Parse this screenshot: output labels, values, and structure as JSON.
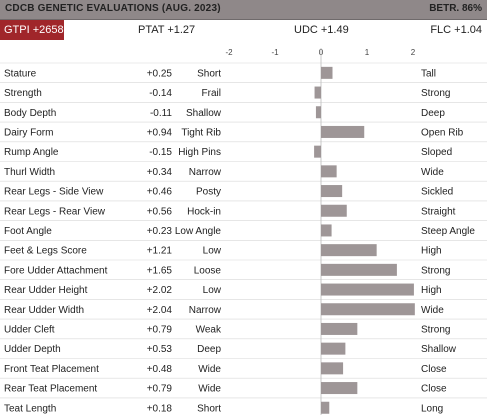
{
  "header": {
    "title": "CDCB GENETIC EVALUATIONS (AUG. 2023)",
    "reliability": "BETR. 86%"
  },
  "summary": {
    "gtpi": "GTPI +2658",
    "ptat": "PTAT +1.27",
    "udc": "UDC +1.49",
    "flc": "FLC +1.04"
  },
  "colors": {
    "bar": "#9e9697",
    "badge": "#a0262a",
    "header": "#8f8889",
    "grid": "#d8d8d8"
  },
  "chart_data": {
    "type": "bar",
    "orientation": "horizontal",
    "xlim": [
      -2,
      2
    ],
    "ticks": [
      "-2",
      "-1",
      "0",
      "1",
      "2"
    ],
    "tick_values": [
      -2,
      -1,
      0,
      1,
      2
    ],
    "traits": [
      {
        "name": "Stature",
        "value_label": "+0.25",
        "value": 0.25,
        "low": "Short",
        "high": "Tall"
      },
      {
        "name": "Strength",
        "value_label": "-0.14",
        "value": -0.14,
        "low": "Frail",
        "high": "Strong"
      },
      {
        "name": "Body Depth",
        "value_label": "-0.11",
        "value": -0.11,
        "low": "Shallow",
        "high": "Deep"
      },
      {
        "name": "Dairy Form",
        "value_label": "+0.94",
        "value": 0.94,
        "low": "Tight Rib",
        "high": "Open Rib"
      },
      {
        "name": "Rump Angle",
        "value_label": "-0.15",
        "value": -0.15,
        "low": "High Pins",
        "high": "Sloped"
      },
      {
        "name": "Thurl Width",
        "value_label": "+0.34",
        "value": 0.34,
        "low": "Narrow",
        "high": "Wide"
      },
      {
        "name": "Rear Legs - Side View",
        "value_label": "+0.46",
        "value": 0.46,
        "low": "Posty",
        "high": "Sickled"
      },
      {
        "name": "Rear Legs - Rear View",
        "value_label": "+0.56",
        "value": 0.56,
        "low": "Hock-in",
        "high": "Straight"
      },
      {
        "name": "Foot Angle",
        "value_label": "+0.23",
        "value": 0.23,
        "low": "Low Angle",
        "high": "Steep Angle"
      },
      {
        "name": "Feet & Legs Score",
        "value_label": "+1.21",
        "value": 1.21,
        "low": "Low",
        "high": "High"
      },
      {
        "name": "Fore Udder Attachment",
        "value_label": "+1.65",
        "value": 1.65,
        "low": "Loose",
        "high": "Strong"
      },
      {
        "name": "Rear Udder Height",
        "value_label": "+2.02",
        "value": 2.02,
        "low": "Low",
        "high": "High"
      },
      {
        "name": "Rear Udder Width",
        "value_label": "+2.04",
        "value": 2.04,
        "low": "Narrow",
        "high": "Wide"
      },
      {
        "name": "Udder Cleft",
        "value_label": "+0.79",
        "value": 0.79,
        "low": "Weak",
        "high": "Strong"
      },
      {
        "name": "Udder Depth",
        "value_label": "+0.53",
        "value": 0.53,
        "low": "Deep",
        "high": "Shallow"
      },
      {
        "name": "Front Teat Placement",
        "value_label": "+0.48",
        "value": 0.48,
        "low": "Wide",
        "high": "Close"
      },
      {
        "name": "Rear Teat Placement",
        "value_label": "+0.79",
        "value": 0.79,
        "low": "Wide",
        "high": "Close"
      },
      {
        "name": "Teat Length",
        "value_label": "+0.18",
        "value": 0.18,
        "low": "Short",
        "high": "Long"
      }
    ]
  }
}
